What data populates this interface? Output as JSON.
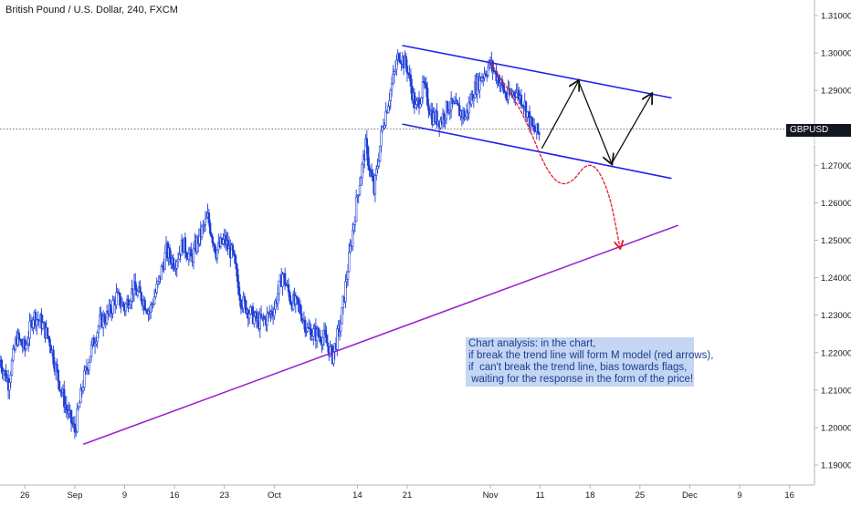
{
  "header": {
    "title": "British Pound / U.S. Dollar, 240, FXCM"
  },
  "price_tag": {
    "symbol": "GBPUSD",
    "price": "1.27967",
    "label": "GBPUSD  1.27967"
  },
  "annotation": {
    "text": "Chart analysis: in the chart,\nif break the trend line will form M model (red arrows),\nif  can't break the trend line, bias towards flags,\n waiting for the response in the form of the price!"
  },
  "colors": {
    "candle": "#1f3fd6",
    "channel": "#2222ee",
    "trendline": "#9b25d6",
    "red_arrow": "#e0202a",
    "black_arrow": "#111111",
    "note_bg": "#c4d6f3"
  },
  "chart_data": {
    "type": "candlestick",
    "title": "British Pound / U.S. Dollar, 240, FXCM",
    "ylim": [
      1.185,
      1.313
    ],
    "y_ticks": [
      "1.31000",
      "1.30000",
      "1.29000",
      "1.28000",
      "1.27000",
      "1.26000",
      "1.25000",
      "1.24000",
      "1.23000",
      "1.22000",
      "1.21000",
      "1.20000",
      "1.19000"
    ],
    "y_tick_values": [
      1.31,
      1.3,
      1.29,
      1.28,
      1.27,
      1.26,
      1.25,
      1.24,
      1.23,
      1.22,
      1.21,
      1.2,
      1.19
    ],
    "x_ticks": [
      "26",
      "Sep",
      "9",
      "16",
      "23",
      "Oct",
      "14",
      "21",
      "Nov",
      "11",
      "18",
      "25",
      "Dec",
      "9",
      "16"
    ],
    "x_tick_index": [
      1.5,
      4.5,
      7.5,
      10.5,
      13.5,
      16.5,
      21.5,
      24.5,
      29.5,
      32.5,
      35.5,
      38.5,
      41.5,
      44.5,
      47.5
    ],
    "current_price": 1.27967,
    "price_path": [
      [
        0,
        1.218
      ],
      [
        0.5,
        1.212
      ],
      [
        1,
        1.224
      ],
      [
        1.5,
        1.221
      ],
      [
        2,
        1.23
      ],
      [
        2.5,
        1.228
      ],
      [
        3,
        1.223
      ],
      [
        3.5,
        1.213
      ],
      [
        4,
        1.205
      ],
      [
        4.5,
        1.199
      ],
      [
        5,
        1.212
      ],
      [
        5.5,
        1.221
      ],
      [
        6,
        1.228
      ],
      [
        6.5,
        1.23
      ],
      [
        7,
        1.235
      ],
      [
        7.5,
        1.232
      ],
      [
        8,
        1.237
      ],
      [
        8.5,
        1.235
      ],
      [
        9,
        1.231
      ],
      [
        9.5,
        1.238
      ],
      [
        10,
        1.247
      ],
      [
        10.5,
        1.244
      ],
      [
        11,
        1.249
      ],
      [
        11.5,
        1.245
      ],
      [
        12,
        1.251
      ],
      [
        12.5,
        1.256
      ],
      [
        13,
        1.247
      ],
      [
        13.5,
        1.25
      ],
      [
        14,
        1.246
      ],
      [
        14.5,
        1.234
      ],
      [
        15,
        1.231
      ],
      [
        15.5,
        1.228
      ],
      [
        16,
        1.229
      ],
      [
        16.5,
        1.232
      ],
      [
        17,
        1.241
      ],
      [
        17.5,
        1.234
      ],
      [
        18,
        1.232
      ],
      [
        18.5,
        1.226
      ],
      [
        19,
        1.225
      ],
      [
        19.5,
        1.224
      ],
      [
        20,
        1.219
      ],
      [
        20.5,
        1.228
      ],
      [
        21,
        1.245
      ],
      [
        21.5,
        1.262
      ],
      [
        22,
        1.275
      ],
      [
        22.5,
        1.263
      ],
      [
        23,
        1.28
      ],
      [
        23.5,
        1.29
      ],
      [
        24,
        1.3
      ],
      [
        24.5,
        1.296
      ],
      [
        25,
        1.285
      ],
      [
        25.5,
        1.291
      ],
      [
        26,
        1.283
      ],
      [
        26.5,
        1.282
      ],
      [
        27,
        1.286
      ],
      [
        27.5,
        1.285
      ],
      [
        28,
        1.283
      ],
      [
        28.5,
        1.29
      ],
      [
        29,
        1.294
      ],
      [
        29.5,
        1.297
      ],
      [
        30,
        1.293
      ],
      [
        30.5,
        1.288
      ],
      [
        31,
        1.29
      ],
      [
        31.5,
        1.287
      ],
      [
        32,
        1.28
      ],
      [
        32.5,
        1.278
      ]
    ],
    "price_channel": [
      {
        "name": "upper",
        "from": [
          24.2,
          1.302
        ],
        "to": [
          40.4,
          1.288
        ]
      },
      {
        "name": "lower",
        "from": [
          24.2,
          1.281
        ],
        "to": [
          40.4,
          1.2665
        ]
      }
    ],
    "trendline": {
      "from": [
        5,
        1.1955
      ],
      "to": [
        40.8,
        1.254
      ]
    },
    "red_path": [
      [
        29.5,
        1.2975
      ],
      [
        31.5,
        1.284
      ],
      [
        33,
        1.267
      ],
      [
        34.2,
        1.264
      ],
      [
        35.5,
        1.272
      ],
      [
        36.6,
        1.264
      ],
      [
        37.3,
        1.248
      ]
    ],
    "black_path": [
      [
        32.6,
        1.2745
      ],
      [
        34.8,
        1.2925
      ],
      [
        36.8,
        1.2705
      ],
      [
        39.2,
        1.289
      ]
    ]
  }
}
